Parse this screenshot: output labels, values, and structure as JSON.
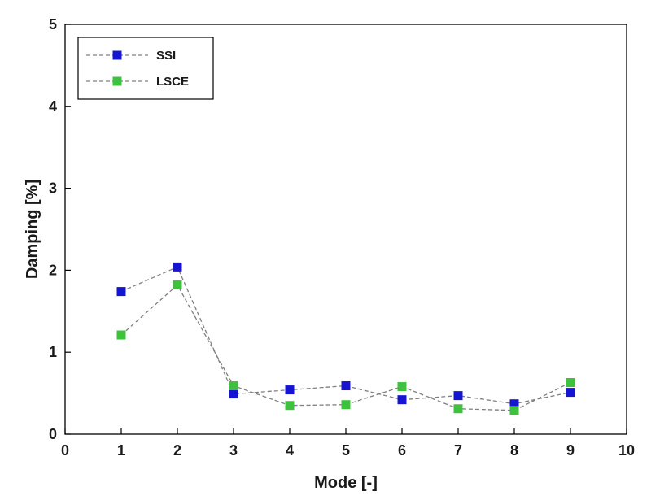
{
  "chart_data": {
    "type": "scatter",
    "xlabel": "Mode [-]",
    "ylabel": "Damping [%]",
    "xlim": [
      0,
      10
    ],
    "ylim": [
      0,
      5
    ],
    "xticks": [
      0,
      1,
      2,
      3,
      4,
      5,
      6,
      7,
      8,
      9,
      10
    ],
    "yticks": [
      0,
      1,
      2,
      3,
      4,
      5
    ],
    "grid": false,
    "legend_position": "top-left",
    "line_style": "dashed",
    "line_color": "#7f7f7f",
    "series": [
      {
        "name": "SSI",
        "color": "#1414d2",
        "marker": "square",
        "x": [
          1,
          2,
          3,
          4,
          5,
          6,
          7,
          8,
          9
        ],
        "y": [
          1.74,
          2.04,
          0.49,
          0.54,
          0.59,
          0.42,
          0.47,
          0.37,
          0.51
        ]
      },
      {
        "name": "LSCE",
        "color": "#3ec23e",
        "marker": "square",
        "x": [
          1,
          2,
          3,
          4,
          5,
          6,
          7,
          8,
          9
        ],
        "y": [
          1.21,
          1.82,
          0.59,
          0.35,
          0.36,
          0.58,
          0.31,
          0.29,
          0.63
        ]
      }
    ]
  }
}
